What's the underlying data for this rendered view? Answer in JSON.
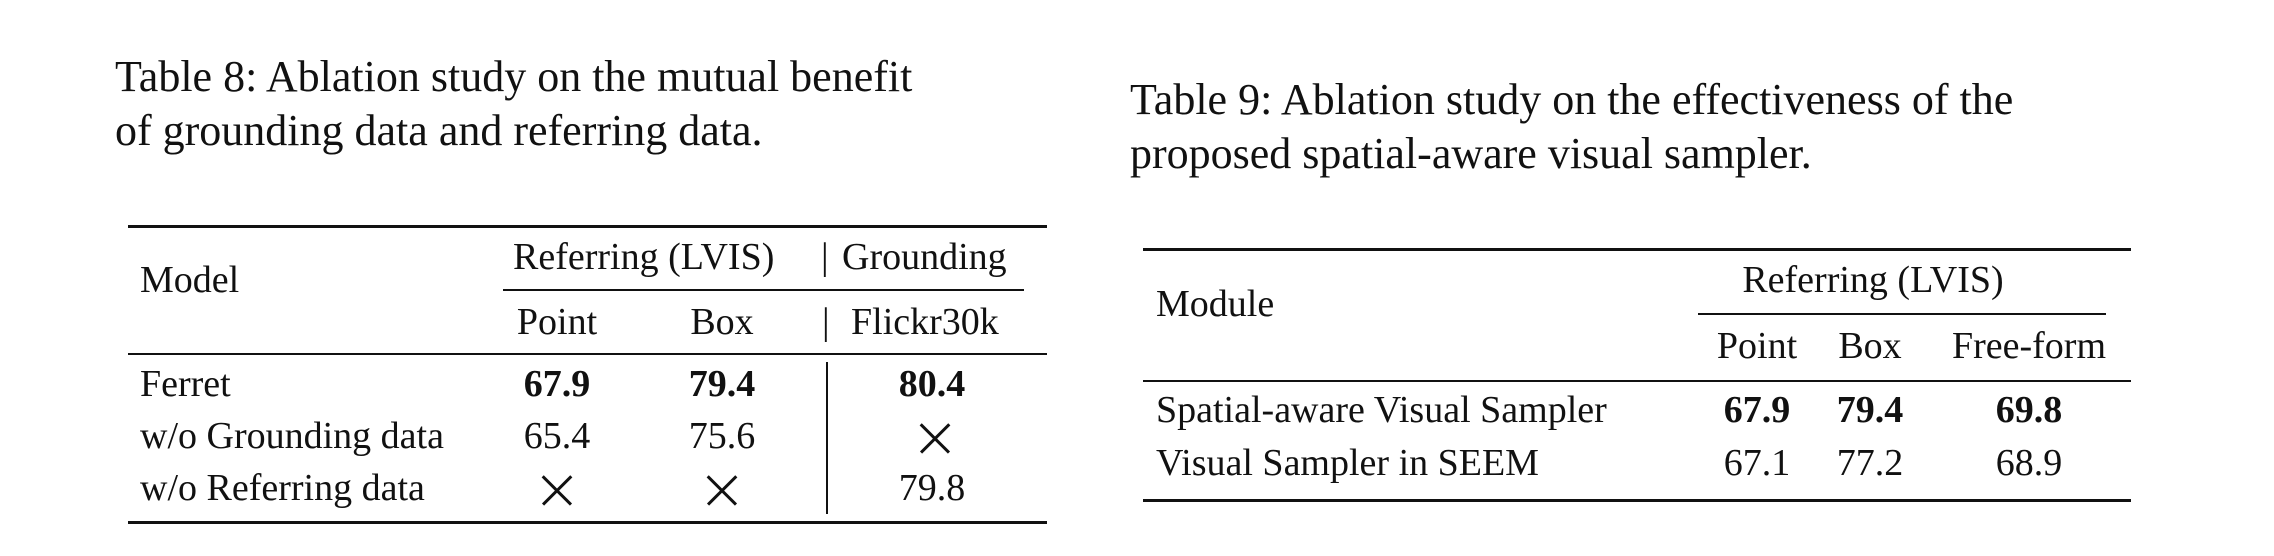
{
  "table8": {
    "caption_line1": "Table 8: Ablation study on the mutual benefit",
    "caption_line2": "of grounding data and referring data.",
    "header": {
      "model": "Model",
      "group_referring": "Referring (LVIS)",
      "group_sep": "|",
      "group_grounding": "Grounding",
      "point": "Point",
      "box": "Box",
      "sub_sep": "|",
      "flickr": "Flickr30k"
    },
    "rows": [
      {
        "model": "Ferret",
        "point": "67.9",
        "box": "79.4",
        "flickr": "80.4"
      },
      {
        "model": "w/o Grounding data",
        "point": "65.4",
        "box": "75.6",
        "flickr": "×"
      },
      {
        "model": "w/o Referring data",
        "point": "×",
        "box": "×",
        "flickr": "79.8"
      }
    ]
  },
  "table9": {
    "caption_line1": "Table 9: Ablation study on the effectiveness of the",
    "caption_line2": "proposed spatial-aware visual sampler.",
    "header": {
      "module": "Module",
      "group_referring": "Referring (LVIS)",
      "point": "Point",
      "box": "Box",
      "freeform": "Free-form"
    },
    "rows": [
      {
        "module": "Spatial-aware Visual Sampler",
        "point": "67.9",
        "box": "79.4",
        "freeform": "69.8"
      },
      {
        "module": "Visual Sampler in SEEM",
        "point": "67.1",
        "box": "77.2",
        "freeform": "68.9"
      }
    ]
  }
}
